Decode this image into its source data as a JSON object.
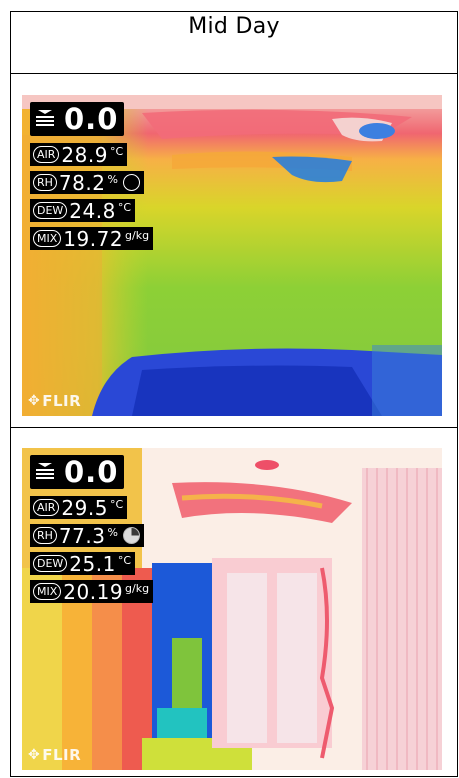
{
  "header": {
    "title": "Mid Day"
  },
  "panels": [
    {
      "reading": "0.0",
      "air": {
        "label": "AIR",
        "value": "28.9",
        "unit": "°C"
      },
      "rh": {
        "label": "RH",
        "value": "78.2",
        "unit": "%"
      },
      "dew": {
        "label": "DEW",
        "value": "24.8",
        "unit": "°C"
      },
      "mix": {
        "label": "MIX",
        "value": "19.72",
        "unit": "g/kg"
      },
      "brand": "FLIR"
    },
    {
      "reading": "0.0",
      "air": {
        "label": "AIR",
        "value": "29.5",
        "unit": "°C"
      },
      "rh": {
        "label": "RH",
        "value": "77.3",
        "unit": "%"
      },
      "dew": {
        "label": "DEW",
        "value": "25.1",
        "unit": "°C"
      },
      "mix": {
        "label": "MIX",
        "value": "20.19",
        "unit": "g/kg"
      },
      "brand": "FLIR"
    }
  ]
}
